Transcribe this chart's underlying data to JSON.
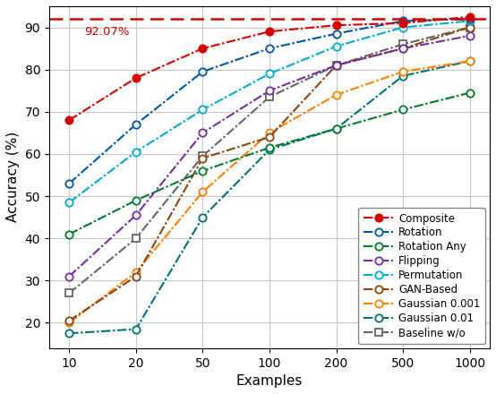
{
  "x": [
    10,
    20,
    50,
    100,
    200,
    500,
    1000
  ],
  "x_positions": [
    0,
    1,
    2,
    3,
    4,
    5,
    6
  ],
  "x_labels": [
    "10",
    "20",
    "50",
    "100",
    "200",
    "500",
    "1000"
  ],
  "series": {
    "Composite": {
      "y": [
        68,
        78,
        85,
        89,
        90.5,
        91,
        92.5
      ],
      "color": "#d40000",
      "marker": "o",
      "marker_face": "#d40000",
      "zorder": 10
    },
    "Rotation": {
      "y": [
        53,
        67,
        79.5,
        85,
        88.5,
        91.5,
        92
      ],
      "color": "#0054a6",
      "marker": "o",
      "marker_face": "#ffffff",
      "zorder": 9
    },
    "Rotation Any": {
      "y": [
        41,
        49,
        56,
        61.5,
        66,
        70.5,
        74.5
      ],
      "color": "#007a2f",
      "marker": "o",
      "marker_face": "#ffffff",
      "zorder": 8
    },
    "Flipping": {
      "y": [
        31,
        45.5,
        65,
        75,
        81,
        85,
        88
      ],
      "color": "#7030a0",
      "marker": "o",
      "marker_face": "#ffffff",
      "zorder": 7
    },
    "Permutation": {
      "y": [
        48.5,
        60.5,
        70.5,
        79,
        85.5,
        90,
        91.5
      ],
      "color": "#00aacc",
      "marker": "o",
      "marker_face": "#ffffff",
      "zorder": 6
    },
    "GAN-Based": {
      "y": [
        20.5,
        31,
        59,
        64,
        81,
        85,
        90
      ],
      "color": "#8b4513",
      "marker": "o",
      "marker_face": "#ffffff",
      "zorder": 5
    },
    "Gaussian 0.001": {
      "y": [
        20,
        32,
        51,
        65,
        74,
        79.5,
        82
      ],
      "color": "#ff8000",
      "marker": "o",
      "marker_face": "#ffffff",
      "zorder": 4
    },
    "Gaussian 0.01": {
      "y": [
        17.5,
        18.5,
        45,
        61,
        66,
        78.5,
        82
      ],
      "color": "#007070",
      "marker": "o",
      "marker_face": "#ffffff",
      "zorder": 3
    },
    "Baseline w/o": {
      "y": [
        27,
        40,
        59.5,
        73.5,
        81,
        86,
        90
      ],
      "color": "#666666",
      "marker": "s",
      "marker_face": "#ffffff",
      "zorder": 2
    }
  },
  "hline_y": 92.07,
  "hline_color": "#d40000",
  "hline_label": "92.07%",
  "xlabel": "Examples",
  "ylabel": "Accuracy (%)",
  "ylim": [
    14,
    95
  ],
  "yticks": [
    20,
    30,
    40,
    50,
    60,
    70,
    80,
    90
  ],
  "legend_fontsize": 8.5,
  "axis_label_fontsize": 11,
  "tick_fontsize": 10
}
